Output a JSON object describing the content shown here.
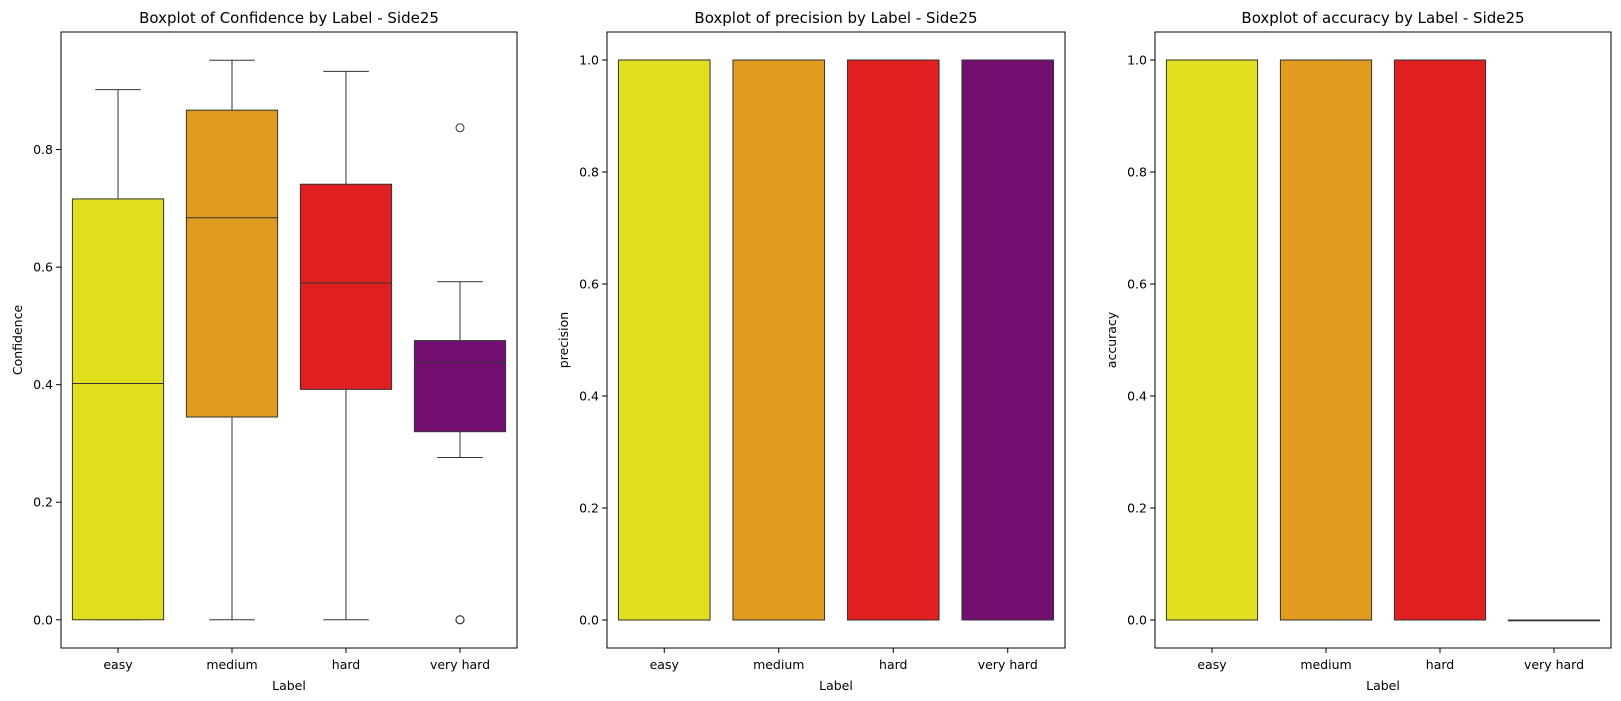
{
  "chart_data": [
    {
      "type": "boxplot",
      "title": "Boxplot of Confidence by Label - Side25",
      "xlabel": "Label",
      "ylabel": "Confidence",
      "ylim": [
        -0.048,
        1.0
      ],
      "yticks": [
        "0.0",
        "0.2",
        "0.4",
        "0.6",
        "0.8"
      ],
      "yticks_values": [
        0.0,
        0.2,
        0.4,
        0.6,
        0.8
      ],
      "categories": [
        "easy",
        "medium",
        "hard",
        "very hard"
      ],
      "colors": [
        "#dfdf1d",
        "#df9c20",
        "#df1f20",
        "#720f70"
      ],
      "boxes": [
        {
          "min": 0.0,
          "q1": 0.0,
          "median": 0.402,
          "q3": 0.716,
          "max": 0.902,
          "outliers": []
        },
        {
          "min": 0.0,
          "q1": 0.345,
          "median": 0.684,
          "q3": 0.867,
          "max": 0.952,
          "outliers": []
        },
        {
          "min": 0.0,
          "q1": 0.392,
          "median": 0.573,
          "q3": 0.741,
          "max": 0.933,
          "outliers": []
        },
        {
          "min": 0.276,
          "q1": 0.32,
          "median": 0.438,
          "q3": 0.475,
          "max": 0.575,
          "outliers": [
            0.837,
            0.0,
            0.0
          ]
        }
      ]
    },
    {
      "type": "boxplot",
      "title": "Boxplot of precision by Label - Side25",
      "xlabel": "Label",
      "ylabel": "precision",
      "ylim": [
        -0.05,
        1.05
      ],
      "yticks": [
        "0.0",
        "0.2",
        "0.4",
        "0.6",
        "0.8",
        "1.0"
      ],
      "yticks_values": [
        0.0,
        0.2,
        0.4,
        0.6,
        0.8,
        1.0
      ],
      "categories": [
        "easy",
        "medium",
        "hard",
        "very hard"
      ],
      "colors": [
        "#dfdf1d",
        "#df9c20",
        "#df1f20",
        "#720f70"
      ],
      "boxes": [
        {
          "min": 0.0,
          "q1": 0.0,
          "median": 1.0,
          "q3": 1.0,
          "max": 1.0,
          "outliers": []
        },
        {
          "min": 0.0,
          "q1": 0.0,
          "median": 1.0,
          "q3": 1.0,
          "max": 1.0,
          "outliers": []
        },
        {
          "min": 0.0,
          "q1": 0.0,
          "median": 1.0,
          "q3": 1.0,
          "max": 1.0,
          "outliers": []
        },
        {
          "min": 0.0,
          "q1": 0.0,
          "median": 1.0,
          "q3": 1.0,
          "max": 1.0,
          "outliers": []
        }
      ]
    },
    {
      "type": "boxplot",
      "title": "Boxplot of accuracy by Label - Side25",
      "xlabel": "Label",
      "ylabel": "accuracy",
      "ylim": [
        -0.05,
        1.05
      ],
      "yticks": [
        "0.0",
        "0.2",
        "0.4",
        "0.6",
        "0.8",
        "1.0"
      ],
      "yticks_values": [
        0.0,
        0.2,
        0.4,
        0.6,
        0.8,
        1.0
      ],
      "categories": [
        "easy",
        "medium",
        "hard",
        "very hard"
      ],
      "colors": [
        "#dfdf1d",
        "#df9c20",
        "#df1f20",
        "#720f70"
      ],
      "boxes": [
        {
          "min": 0.0,
          "q1": 0.0,
          "median": 1.0,
          "q3": 1.0,
          "max": 1.0,
          "outliers": []
        },
        {
          "min": 0.0,
          "q1": 0.0,
          "median": 1.0,
          "q3": 1.0,
          "max": 1.0,
          "outliers": []
        },
        {
          "min": 0.0,
          "q1": 0.0,
          "median": 1.0,
          "q3": 1.0,
          "max": 1.0,
          "outliers": []
        },
        {
          "min": 0.0,
          "q1": 0.0,
          "median": 0.0,
          "q3": 0.0,
          "max": 0.0,
          "outliers": []
        }
      ]
    }
  ]
}
